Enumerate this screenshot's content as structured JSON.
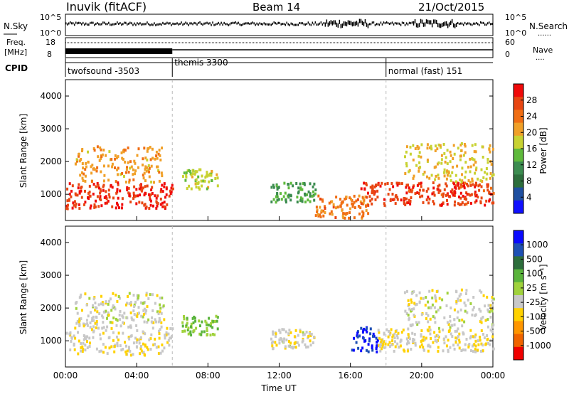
{
  "header": {
    "title": "Inuvik (fitACF)",
    "beam": "Beam 14",
    "date": "21/Oct/2015"
  },
  "summary": {
    "nsky_label": "N.Sky",
    "nsearch_label": "N.Search",
    "left_ticks_top": [
      "10^5",
      "10^0"
    ],
    "right_ticks_top": [
      "10^5",
      "10^0"
    ],
    "freq_label_1": "Freq.",
    "freq_label_2": "[MHz]",
    "freq_ticks": [
      "18",
      "8"
    ],
    "nave_label": "Nave",
    "nave_ticks": [
      "60",
      "0"
    ],
    "cpid_label": "CPID",
    "modes": [
      {
        "label": "twofsound -3503",
        "start_hour": 0
      },
      {
        "label": "themis 3300",
        "start_hour": 6
      },
      {
        "label": "normal (fast) 151",
        "start_hour": 18
      }
    ]
  },
  "colors": {
    "power_scale": [
      "#1010ff",
      "#1f4fa0",
      "#2d6e3c",
      "#3c8c50",
      "#5fba3c",
      "#c8d232",
      "#f0a028",
      "#f06e14",
      "#e84612",
      "#f00a0a"
    ],
    "velocity_scale": [
      "#0a0aff",
      "#1e50b4",
      "#2d6e3c",
      "#5ab43c",
      "#a0d23c",
      "#c8c8c8",
      "#ffd200",
      "#ff9600",
      "#f06400",
      "#f00000"
    ]
  },
  "chart_data": [
    {
      "type": "heatmap",
      "panel": "power",
      "xlabel": "Time UT",
      "ylabel": "Slant Range [km]",
      "xlim": [
        0,
        24
      ],
      "ylim": [
        200,
        4500
      ],
      "x_ticks": [
        "00:00",
        "04:00",
        "08:00",
        "12:00",
        "16:00",
        "20:00",
        "00:00"
      ],
      "y_ticks": [
        "1000",
        "2000",
        "3000",
        "4000"
      ],
      "colorbar_label": "Power [dB]",
      "colorbar_ticks": [
        "28",
        "24",
        "20",
        "16",
        "12",
        "8",
        "4"
      ],
      "color_range": [
        0,
        30
      ],
      "regions": [
        {
          "t0": 0.0,
          "t1": 6.0,
          "r0": 600,
          "r1": 1400,
          "level": 27
        },
        {
          "t0": 0.5,
          "t1": 5.5,
          "r0": 1400,
          "r1": 2500,
          "level": 20
        },
        {
          "t0": 6.5,
          "t1": 8.5,
          "r0": 1200,
          "r1": 1800,
          "level": 16
        },
        {
          "t0": 11.5,
          "t1": 14.0,
          "r0": 800,
          "r1": 1400,
          "level": 12
        },
        {
          "t0": 14.0,
          "t1": 17.0,
          "r0": 300,
          "r1": 1000,
          "level": 22
        },
        {
          "t0": 16.5,
          "t1": 24.0,
          "r0": 700,
          "r1": 1400,
          "level": 26
        },
        {
          "t0": 19.0,
          "t1": 24.0,
          "r0": 1400,
          "r1": 2600,
          "level": 18
        }
      ]
    },
    {
      "type": "heatmap",
      "panel": "velocity",
      "xlabel": "Time UT",
      "ylabel": "Slant Range [km]",
      "xlim": [
        0,
        24
      ],
      "ylim": [
        200,
        4500
      ],
      "x_ticks": [
        "00:00",
        "04:00",
        "08:00",
        "12:00",
        "16:00",
        "20:00",
        "00:00"
      ],
      "y_ticks": [
        "1000",
        "2000",
        "3000",
        "4000"
      ],
      "colorbar_label": "Velocity [m s⁻¹]",
      "colorbar_ticks": [
        "1000",
        "500",
        "100",
        "25",
        "-25",
        "-100",
        "-500",
        "-1000"
      ],
      "color_range": [
        -1000,
        1000
      ],
      "regions": [
        {
          "t0": 0.0,
          "t1": 6.0,
          "r0": 600,
          "r1": 1600,
          "level": -150
        },
        {
          "t0": 0.5,
          "t1": 5.5,
          "r0": 1600,
          "r1": 2500,
          "level": -100
        },
        {
          "t0": 6.5,
          "t1": 8.5,
          "r0": 1200,
          "r1": 1800,
          "level": 200
        },
        {
          "t0": 11.5,
          "t1": 14.0,
          "r0": 800,
          "r1": 1400,
          "level": -120
        },
        {
          "t0": 16.0,
          "t1": 17.5,
          "r0": 700,
          "r1": 1500,
          "level": 800
        },
        {
          "t0": 17.5,
          "t1": 24.0,
          "r0": 700,
          "r1": 1400,
          "level": -200
        },
        {
          "t0": 19.0,
          "t1": 24.0,
          "r0": 1400,
          "r1": 2600,
          "level": -100
        }
      ]
    }
  ]
}
